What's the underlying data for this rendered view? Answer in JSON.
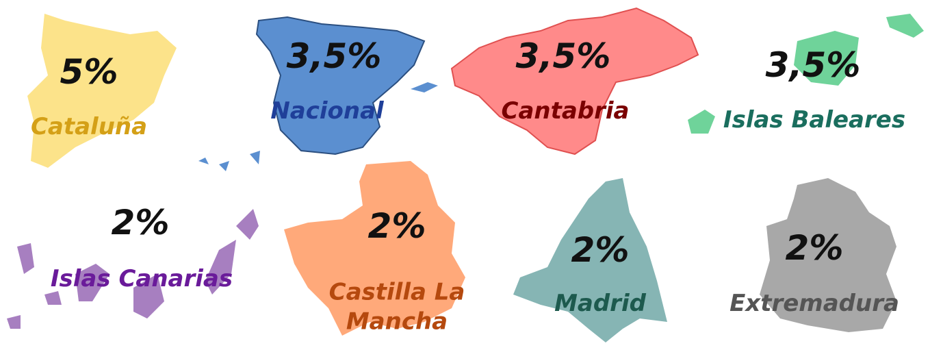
{
  "regions": [
    {
      "name": "Cataluña",
      "value": "5%"
    },
    {
      "name": "Nacional",
      "value": "3,5%"
    },
    {
      "name": "Cantabria",
      "value": "3,5%"
    },
    {
      "name": "Islas Baleares",
      "value": "3,5%"
    },
    {
      "name": "Islas Canarias",
      "value": "2%"
    },
    {
      "name": "Castilla La Mancha",
      "value": "2%"
    },
    {
      "name": "Madrid",
      "value": "2%"
    },
    {
      "name": "Extremadura",
      "value": "2%"
    }
  ]
}
